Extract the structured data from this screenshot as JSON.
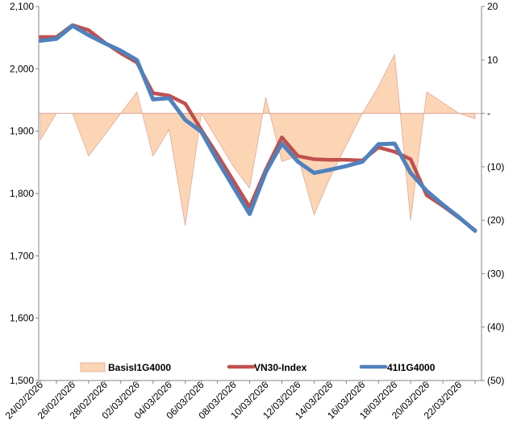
{
  "chart_data": {
    "type": "line",
    "x": [
      "24/02/2026",
      "25/02/2026",
      "26/02/2026",
      "27/02/2026",
      "28/02/2026",
      "01/03/2026",
      "02/03/2026",
      "03/03/2026",
      "04/03/2026",
      "05/03/2026",
      "06/03/2026",
      "07/03/2026",
      "08/03/2026",
      "09/03/2026",
      "10/03/2026",
      "11/03/2026",
      "12/03/2026",
      "13/03/2026",
      "14/03/2026",
      "15/03/2026",
      "16/03/2026",
      "17/03/2026",
      "18/03/2026",
      "19/03/2026",
      "20/03/2026",
      "21/03/2026",
      "22/03/2026",
      "23/03/2026"
    ],
    "x_tick_labels": [
      "24/02/2026",
      "26/02/2026",
      "28/02/2026",
      "02/03/2026",
      "04/03/2026",
      "06/03/2026",
      "08/03/2026",
      "10/03/2026",
      "12/03/2026",
      "14/03/2026",
      "16/03/2026",
      "18/03/2026",
      "20/03/2026",
      "22/03/2026"
    ],
    "y_left": {
      "ylim": [
        1500,
        2100
      ],
      "ticks": [
        "1,500",
        "1,600",
        "1,700",
        "1,800",
        "1,900",
        "2,000",
        "2,100"
      ]
    },
    "y_right": {
      "ylim": [
        -50,
        20
      ],
      "ticks": [
        "(50)",
        "(40)",
        "(30)",
        "(20)",
        "(10)",
        "-",
        "10",
        "20"
      ]
    },
    "series": [
      {
        "name": "BasisI1G4000",
        "kind": "area",
        "axis": "right",
        "color": "#fcd5b5",
        "edge_color": "#e0a89a",
        "points": [
          [
            0,
            -5
          ],
          [
            1,
            0
          ],
          [
            2,
            0
          ],
          [
            3,
            -8
          ],
          [
            4,
            -4
          ],
          [
            5,
            0
          ],
          [
            6,
            4
          ],
          [
            7,
            -8
          ],
          [
            8,
            -3
          ],
          [
            9,
            -21
          ],
          [
            10,
            0
          ],
          [
            11,
            -5
          ],
          [
            12,
            -10
          ],
          [
            13,
            -14
          ],
          [
            14,
            3
          ],
          [
            15,
            -9
          ],
          [
            16,
            -8
          ],
          [
            17,
            -19
          ],
          [
            18,
            -12
          ],
          [
            19,
            -6
          ],
          [
            20,
            0
          ],
          [
            21,
            5
          ],
          [
            22,
            11
          ],
          [
            23,
            -20
          ],
          [
            24,
            4
          ],
          [
            25,
            2
          ],
          [
            26,
            0
          ],
          [
            27,
            -1
          ]
        ]
      },
      {
        "name": "VN30-Index",
        "kind": "line",
        "axis": "left",
        "color": "#c0504d",
        "points": [
          [
            0,
            2051
          ],
          [
            1,
            2051
          ],
          [
            2,
            2070
          ],
          [
            3,
            2062
          ],
          [
            4,
            2042
          ],
          [
            5,
            2025
          ],
          [
            6,
            2010
          ],
          [
            7,
            1961
          ],
          [
            8,
            1957
          ],
          [
            9,
            1944
          ],
          [
            10,
            1902
          ],
          [
            11,
            1862
          ],
          [
            12,
            1820
          ],
          [
            13,
            1778
          ],
          [
            14,
            1838
          ],
          [
            15,
            1890
          ],
          [
            16,
            1860
          ],
          [
            17,
            1855
          ],
          [
            18,
            1854
          ],
          [
            19,
            1854
          ],
          [
            20,
            1853
          ],
          [
            21,
            1874
          ],
          [
            22,
            1867
          ],
          [
            23,
            1855
          ],
          [
            24,
            1797
          ],
          [
            25,
            1780
          ],
          [
            26,
            1761
          ],
          [
            27,
            1741
          ]
        ]
      },
      {
        "name": "41I1G4000",
        "kind": "line",
        "axis": "left",
        "color": "#4f81bd",
        "points": [
          [
            0,
            2045
          ],
          [
            1,
            2048
          ],
          [
            2,
            2069
          ],
          [
            3,
            2054
          ],
          [
            4,
            2041
          ],
          [
            5,
            2029
          ],
          [
            6,
            2014
          ],
          [
            7,
            1951
          ],
          [
            8,
            1953
          ],
          [
            9,
            1918
          ],
          [
            10,
            1899
          ],
          [
            11,
            1853
          ],
          [
            12,
            1810
          ],
          [
            13,
            1767
          ],
          [
            14,
            1834
          ],
          [
            15,
            1880
          ],
          [
            16,
            1851
          ],
          [
            17,
            1833
          ],
          [
            18,
            1838
          ],
          [
            19,
            1844
          ],
          [
            20,
            1851
          ],
          [
            21,
            1879
          ],
          [
            22,
            1880
          ],
          [
            23,
            1833
          ],
          [
            24,
            1804
          ],
          [
            25,
            1782
          ],
          [
            26,
            1762
          ],
          [
            27,
            1740
          ]
        ]
      }
    ],
    "legend": {
      "position": "bottom-inside",
      "entries": [
        "BasisI1G4000",
        "VN30-Index",
        "41I1G4000"
      ]
    },
    "grid": false,
    "title": "",
    "xlabel": "",
    "ylabel": ""
  }
}
